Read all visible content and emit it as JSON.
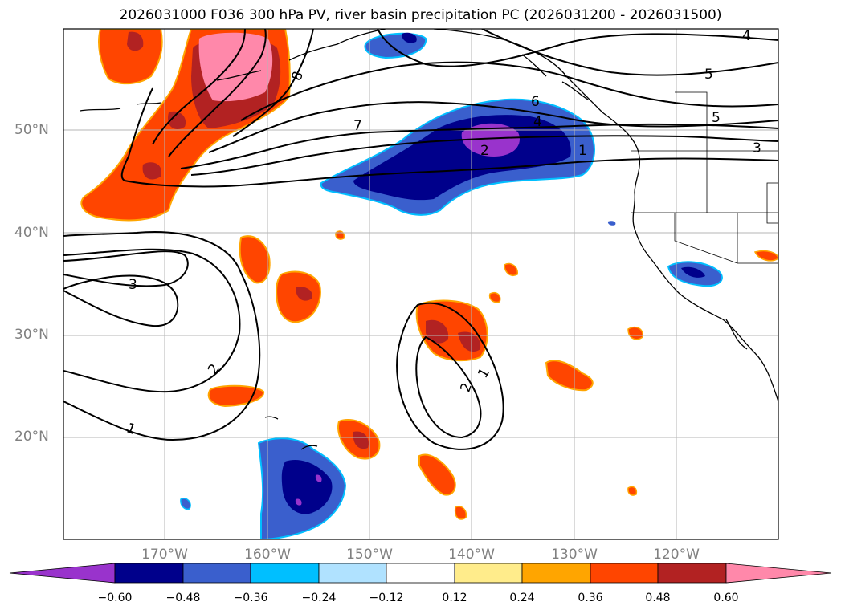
{
  "title": "2026031000 F036 300 hPa PV, river basin precipitation PC (2026031200 - 2026031500)",
  "latitude_labels": [
    "50°N",
    "40°N",
    "30°N",
    "20°N"
  ],
  "longitude_labels": [
    "170°W",
    "160°W",
    "150°W",
    "140°W",
    "130°W",
    "120°W"
  ],
  "contour_labels": [
    "8",
    "7",
    "6",
    "5",
    "5",
    "4",
    "4",
    "3",
    "3",
    "2",
    "2",
    "2",
    "1",
    "1",
    "1"
  ],
  "colorbar": {
    "ticks": [
      "−0.60",
      "−0.48",
      "−0.36",
      "−0.24",
      "−0.12",
      "0.12",
      "0.24",
      "0.36",
      "0.48",
      "0.60"
    ],
    "colors": [
      "#9933cc",
      "#00008b",
      "#3a5fcd",
      "#00bfff",
      "#b0e2ff",
      "#ffffff",
      "#ffec8b",
      "#ffa500",
      "#ff4500",
      "#b22222",
      "#ff88aa",
      "#ff88aa"
    ]
  }
}
